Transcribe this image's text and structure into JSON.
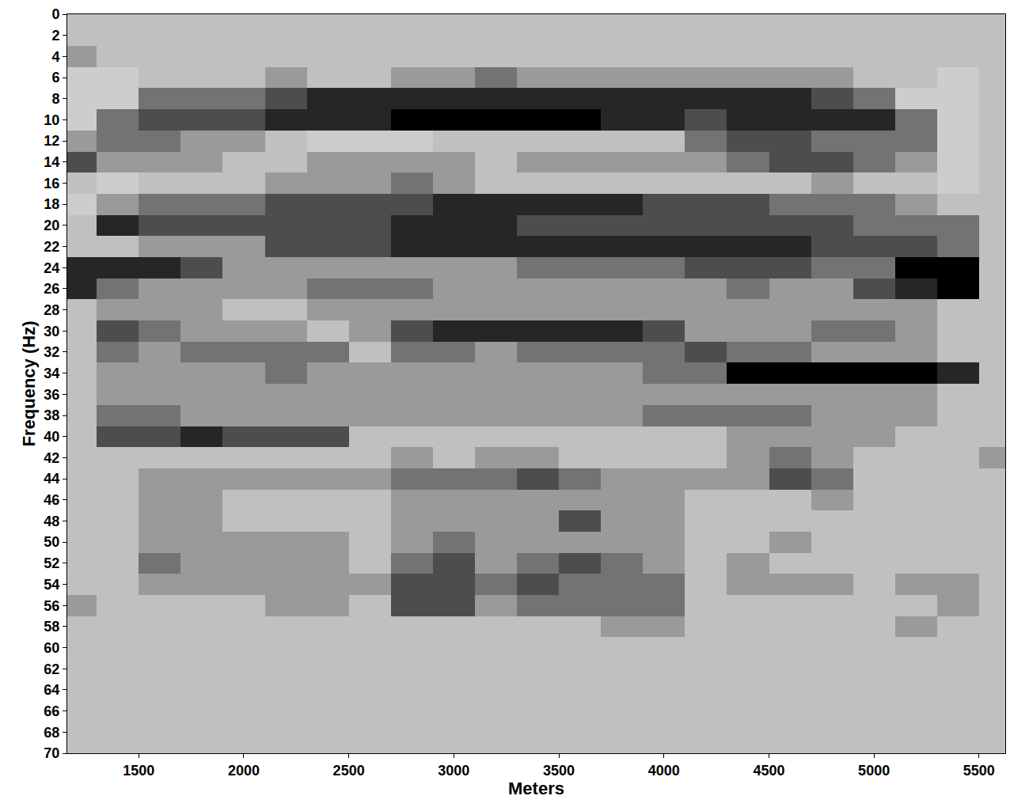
{
  "chart_data": {
    "type": "heatmap",
    "x_label": "Meters",
    "y_label": "Frequency (Hz)",
    "x": [
      1200,
      1400,
      1600,
      1800,
      2000,
      2200,
      2400,
      2600,
      2800,
      3000,
      3200,
      3400,
      3600,
      3800,
      4000,
      4200,
      4400,
      4600,
      4800,
      5000,
      5200,
      5400,
      5600
    ],
    "y": [
      0,
      2,
      4,
      6,
      8,
      10,
      12,
      14,
      16,
      18,
      20,
      22,
      24,
      26,
      28,
      30,
      32,
      34,
      36,
      38,
      40,
      42,
      44,
      46,
      48,
      50,
      52,
      54,
      56,
      58,
      60,
      62,
      64,
      66,
      68,
      70
    ],
    "z": [
      [
        5,
        5,
        5,
        5,
        5,
        5,
        5,
        5,
        5,
        5,
        5,
        5,
        5,
        5,
        5,
        5,
        5,
        5,
        5,
        5,
        5,
        5,
        5
      ],
      [
        5,
        5,
        5,
        5,
        5,
        5,
        5,
        5,
        5,
        5,
        5,
        5,
        5,
        5,
        5,
        5,
        5,
        5,
        5,
        5,
        5,
        5,
        5
      ],
      [
        6,
        5,
        5,
        5,
        5,
        5,
        5,
        5,
        5,
        5,
        5,
        5,
        5,
        5,
        5,
        5,
        5,
        5,
        5,
        5,
        5,
        5,
        5
      ],
      [
        4,
        4,
        5,
        5,
        5,
        6,
        5,
        5,
        6,
        6,
        7,
        6,
        6,
        6,
        6,
        6,
        6,
        6,
        6,
        5,
        5,
        4,
        5
      ],
      [
        4,
        4,
        7,
        7,
        7,
        8,
        9,
        9,
        9,
        9,
        9,
        9,
        9,
        9,
        9,
        9,
        9,
        9,
        8,
        7,
        4,
        4,
        5
      ],
      [
        4,
        7,
        8,
        8,
        8,
        9,
        9,
        9,
        10,
        10,
        10,
        10,
        10,
        9,
        9,
        8,
        9,
        9,
        9,
        9,
        7,
        4,
        5
      ],
      [
        6,
        7,
        7,
        6,
        6,
        5,
        4,
        4,
        4,
        5,
        5,
        5,
        5,
        5,
        5,
        7,
        8,
        8,
        7,
        7,
        7,
        4,
        5
      ],
      [
        8,
        6,
        6,
        6,
        5,
        5,
        6,
        6,
        6,
        6,
        5,
        6,
        6,
        6,
        6,
        6,
        7,
        8,
        8,
        7,
        6,
        4,
        5
      ],
      [
        5,
        4,
        5,
        5,
        5,
        6,
        6,
        6,
        7,
        6,
        5,
        5,
        5,
        5,
        5,
        5,
        5,
        5,
        6,
        5,
        5,
        4,
        5
      ],
      [
        4,
        6,
        7,
        7,
        7,
        8,
        8,
        8,
        8,
        9,
        9,
        9,
        9,
        9,
        8,
        8,
        8,
        7,
        7,
        7,
        6,
        5,
        5
      ],
      [
        5,
        9,
        8,
        8,
        8,
        8,
        8,
        8,
        9,
        9,
        9,
        8,
        8,
        8,
        8,
        8,
        8,
        8,
        8,
        7,
        7,
        7,
        5
      ],
      [
        5,
        5,
        6,
        6,
        6,
        8,
        8,
        8,
        9,
        9,
        9,
        9,
        9,
        9,
        9,
        9,
        9,
        9,
        8,
        8,
        8,
        7,
        5
      ],
      [
        9,
        9,
        9,
        8,
        6,
        6,
        6,
        6,
        6,
        6,
        6,
        7,
        7,
        7,
        7,
        8,
        8,
        8,
        7,
        7,
        10,
        10,
        5
      ],
      [
        9,
        7,
        6,
        6,
        6,
        6,
        7,
        7,
        7,
        6,
        6,
        6,
        6,
        6,
        6,
        6,
        7,
        6,
        6,
        8,
        9,
        10,
        5
      ],
      [
        5,
        6,
        6,
        6,
        5,
        5,
        6,
        6,
        6,
        6,
        6,
        6,
        6,
        6,
        6,
        6,
        6,
        6,
        6,
        6,
        6,
        5,
        5
      ],
      [
        5,
        8,
        7,
        6,
        6,
        6,
        5,
        6,
        8,
        9,
        9,
        9,
        9,
        9,
        8,
        6,
        6,
        6,
        7,
        7,
        6,
        5,
        5
      ],
      [
        5,
        7,
        6,
        7,
        7,
        7,
        7,
        5,
        7,
        7,
        6,
        7,
        7,
        7,
        7,
        8,
        7,
        7,
        6,
        6,
        6,
        5,
        5
      ],
      [
        5,
        6,
        6,
        6,
        6,
        7,
        6,
        6,
        6,
        6,
        6,
        6,
        6,
        6,
        7,
        7,
        10,
        10,
        10,
        10,
        10,
        9,
        5
      ],
      [
        5,
        6,
        6,
        6,
        6,
        6,
        6,
        6,
        6,
        6,
        6,
        6,
        6,
        6,
        6,
        6,
        6,
        6,
        6,
        6,
        6,
        5,
        5
      ],
      [
        5,
        7,
        7,
        6,
        6,
        6,
        6,
        6,
        6,
        6,
        6,
        6,
        6,
        6,
        7,
        7,
        7,
        7,
        6,
        6,
        6,
        5,
        5
      ],
      [
        5,
        8,
        8,
        9,
        8,
        8,
        8,
        5,
        5,
        5,
        5,
        5,
        5,
        5,
        5,
        5,
        6,
        6,
        6,
        6,
        5,
        5,
        5
      ],
      [
        5,
        5,
        5,
        5,
        5,
        5,
        5,
        5,
        6,
        5,
        6,
        6,
        5,
        5,
        5,
        5,
        6,
        7,
        6,
        5,
        5,
        5,
        6
      ],
      [
        5,
        5,
        6,
        6,
        6,
        6,
        6,
        6,
        7,
        7,
        7,
        8,
        7,
        6,
        6,
        6,
        6,
        8,
        7,
        5,
        5,
        5,
        5
      ],
      [
        5,
        5,
        6,
        6,
        5,
        5,
        5,
        5,
        6,
        6,
        6,
        6,
        6,
        6,
        6,
        5,
        5,
        5,
        6,
        5,
        5,
        5,
        5
      ],
      [
        5,
        5,
        6,
        6,
        5,
        5,
        5,
        5,
        6,
        6,
        6,
        6,
        8,
        6,
        6,
        5,
        5,
        5,
        5,
        5,
        5,
        5,
        5
      ],
      [
        5,
        5,
        6,
        6,
        6,
        6,
        6,
        5,
        6,
        7,
        6,
        6,
        6,
        6,
        6,
        5,
        5,
        6,
        5,
        5,
        5,
        5,
        5
      ],
      [
        5,
        5,
        7,
        6,
        6,
        6,
        6,
        5,
        7,
        8,
        6,
        7,
        8,
        7,
        6,
        5,
        6,
        5,
        5,
        5,
        5,
        5,
        5
      ],
      [
        5,
        5,
        6,
        6,
        6,
        6,
        6,
        6,
        8,
        8,
        7,
        8,
        7,
        7,
        7,
        5,
        6,
        6,
        6,
        5,
        6,
        6,
        5
      ],
      [
        6,
        5,
        5,
        5,
        5,
        6,
        6,
        5,
        8,
        8,
        6,
        7,
        7,
        7,
        7,
        5,
        5,
        5,
        5,
        5,
        5,
        6,
        5
      ],
      [
        5,
        5,
        5,
        5,
        5,
        5,
        5,
        5,
        5,
        5,
        5,
        5,
        5,
        6,
        6,
        5,
        5,
        5,
        5,
        5,
        6,
        5,
        5
      ],
      [
        5,
        5,
        5,
        5,
        5,
        5,
        5,
        5,
        5,
        5,
        5,
        5,
        5,
        5,
        5,
        5,
        5,
        5,
        5,
        5,
        5,
        5,
        5
      ],
      [
        5,
        5,
        5,
        5,
        5,
        5,
        5,
        5,
        5,
        5,
        5,
        5,
        5,
        5,
        5,
        5,
        5,
        5,
        5,
        5,
        5,
        5,
        5
      ],
      [
        5,
        5,
        5,
        5,
        5,
        5,
        5,
        5,
        5,
        5,
        5,
        5,
        5,
        5,
        5,
        5,
        5,
        5,
        5,
        5,
        5,
        5,
        5
      ],
      [
        5,
        5,
        5,
        5,
        5,
        5,
        5,
        5,
        5,
        5,
        5,
        5,
        5,
        5,
        5,
        5,
        5,
        5,
        5,
        5,
        5,
        5,
        5
      ],
      [
        5,
        5,
        5,
        5,
        5,
        5,
        5,
        5,
        5,
        5,
        5,
        5,
        5,
        5,
        5,
        5,
        5,
        5,
        5,
        5,
        5,
        5,
        5
      ],
      [
        5,
        5,
        5,
        5,
        5,
        5,
        5,
        5,
        5,
        5,
        5,
        5,
        5,
        5,
        5,
        5,
        5,
        5,
        5,
        5,
        5,
        5,
        5
      ]
    ],
    "zlim": [
      0,
      10
    ],
    "xlim": [
      1160,
      5625
    ],
    "xticks": [
      1500,
      2000,
      2500,
      3000,
      3500,
      4000,
      4500,
      5000,
      5500
    ],
    "ylim": [
      70,
      0
    ],
    "yticks": [
      0,
      2,
      4,
      6,
      8,
      10,
      12,
      14,
      16,
      18,
      20,
      22,
      24,
      26,
      28,
      30,
      32,
      34,
      36,
      38,
      40,
      42,
      44,
      46,
      48,
      50,
      52,
      54,
      56,
      58,
      60,
      62,
      64,
      66,
      68,
      70
    ],
    "grid": false
  }
}
